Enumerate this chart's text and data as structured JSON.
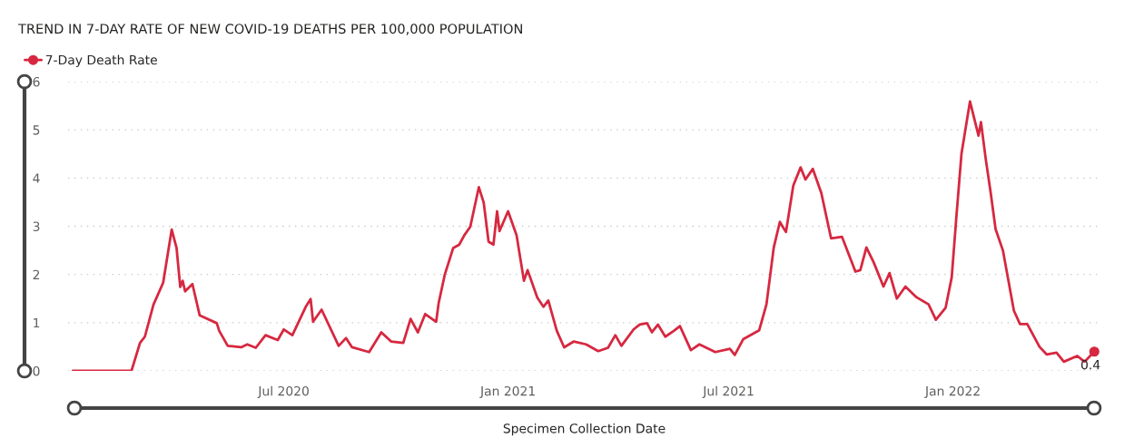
{
  "chart_data": {
    "type": "line",
    "title": "TREND IN 7-DAY RATE OF NEW COVID-19 DEATHS PER 100,000 POPULATION",
    "xlabel": "Specimen Collection Date",
    "x": [
      "2020-01-10",
      "2020-02-27",
      "2020-03-05",
      "2020-03-09",
      "2020-03-16",
      "2020-03-24",
      "2020-03-31",
      "2020-04-04",
      "2020-04-07",
      "2020-04-09",
      "2020-04-11",
      "2020-04-17",
      "2020-04-23",
      "2020-05-07",
      "2020-05-09",
      "2020-05-16",
      "2020-05-27",
      "2020-06-01",
      "2020-06-08",
      "2020-06-16",
      "2020-06-26",
      "2020-07-01",
      "2020-07-08",
      "2020-07-19",
      "2020-07-23",
      "2020-07-25",
      "2020-08-01",
      "2020-08-15",
      "2020-08-21",
      "2020-08-26",
      "2020-09-09",
      "2020-09-19",
      "2020-09-27",
      "2020-10-07",
      "2020-10-13",
      "2020-10-19",
      "2020-10-25",
      "2020-11-03",
      "2020-11-05",
      "2020-11-10",
      "2020-11-17",
      "2020-11-22",
      "2020-11-26",
      "2020-12-01",
      "2020-12-08",
      "2020-12-12",
      "2020-12-16",
      "2020-12-20",
      "2020-12-23",
      "2020-12-25",
      "2021-01-01",
      "2021-01-08",
      "2021-01-14",
      "2021-01-17",
      "2021-01-25",
      "2021-01-30",
      "2021-02-03",
      "2021-02-10",
      "2021-02-16",
      "2021-02-24",
      "2021-03-06",
      "2021-03-16",
      "2021-03-24",
      "2021-03-30",
      "2021-04-04",
      "2021-04-14",
      "2021-04-19",
      "2021-04-25",
      "2021-04-29",
      "2021-05-04",
      "2021-05-10",
      "2021-05-17",
      "2021-05-22",
      "2021-05-31",
      "2021-06-07",
      "2021-06-20",
      "2021-07-02",
      "2021-07-06",
      "2021-07-13",
      "2021-07-26",
      "2021-08-01",
      "2021-08-07",
      "2021-08-12",
      "2021-08-17",
      "2021-08-23",
      "2021-08-29",
      "2021-09-02",
      "2021-09-08",
      "2021-09-15",
      "2021-09-23",
      "2021-10-02",
      "2021-10-13",
      "2021-10-17",
      "2021-10-22",
      "2021-10-28",
      "2021-11-05",
      "2021-11-10",
      "2021-11-16",
      "2021-11-23",
      "2021-12-02",
      "2021-12-12",
      "2021-12-18",
      "2021-12-26",
      "2021-12-31",
      "2022-01-04",
      "2022-01-08",
      "2022-01-15",
      "2022-01-22",
      "2022-01-24",
      "2022-01-28",
      "2022-02-01",
      "2022-02-05",
      "2022-02-11",
      "2022-02-20",
      "2022-02-25",
      "2022-03-03",
      "2022-03-13",
      "2022-03-19",
      "2022-03-27",
      "2022-04-02",
      "2022-04-13",
      "2022-04-19",
      "2022-04-27"
    ],
    "series": [
      {
        "name": "7-Day Death Rate",
        "color": "#d62840",
        "values": [
          0,
          0,
          0.58,
          0.71,
          1.37,
          1.83,
          2.93,
          2.55,
          1.74,
          1.87,
          1.65,
          1.8,
          1.15,
          0.99,
          0.83,
          0.52,
          0.49,
          0.55,
          0.48,
          0.74,
          0.64,
          0.86,
          0.74,
          1.33,
          1.49,
          1.02,
          1.27,
          0.52,
          0.68,
          0.49,
          0.39,
          0.8,
          0.61,
          0.58,
          1.08,
          0.8,
          1.18,
          1.02,
          1.4,
          1.99,
          2.55,
          2.62,
          2.81,
          2.99,
          3.81,
          3.49,
          2.68,
          2.62,
          3.31,
          2.9,
          3.31,
          2.81,
          1.87,
          2.09,
          1.52,
          1.33,
          1.46,
          0.83,
          0.49,
          0.61,
          0.55,
          0.41,
          0.48,
          0.74,
          0.52,
          0.86,
          0.96,
          0.99,
          0.8,
          0.96,
          0.71,
          0.83,
          0.93,
          0.43,
          0.55,
          0.39,
          0.46,
          0.33,
          0.66,
          0.84,
          1.38,
          2.56,
          3.09,
          2.88,
          3.84,
          4.22,
          3.97,
          4.19,
          3.69,
          2.75,
          2.78,
          2.06,
          2.09,
          2.56,
          2.25,
          1.75,
          2.03,
          1.5,
          1.75,
          1.53,
          1.38,
          1.06,
          1.31,
          1.94,
          3.25,
          4.5,
          5.59,
          4.88,
          5.16,
          4.38,
          3.69,
          2.94,
          2.5,
          1.25,
          0.97,
          0.97,
          0.5,
          0.34,
          0.38,
          0.19,
          0.31,
          0.19,
          0.4
        ]
      }
    ],
    "annotations": [
      {
        "text": "0.4",
        "x": "2022-04-27",
        "y": 0.4
      }
    ],
    "xlim": [
      "2020-01-06",
      "2022-05-02"
    ],
    "xticks": [
      {
        "value": "2020-07-01",
        "label": "Jul 2020"
      },
      {
        "value": "2021-01-01",
        "label": "Jan 2021"
      },
      {
        "value": "2021-07-01",
        "label": "Jul 2021"
      },
      {
        "value": "2022-01-01",
        "label": "Jan 2022"
      }
    ],
    "ylim": [
      0,
      6
    ],
    "yticks": [
      0,
      1,
      2,
      3,
      4,
      5,
      6
    ],
    "grid": "y",
    "legend": "top left"
  }
}
